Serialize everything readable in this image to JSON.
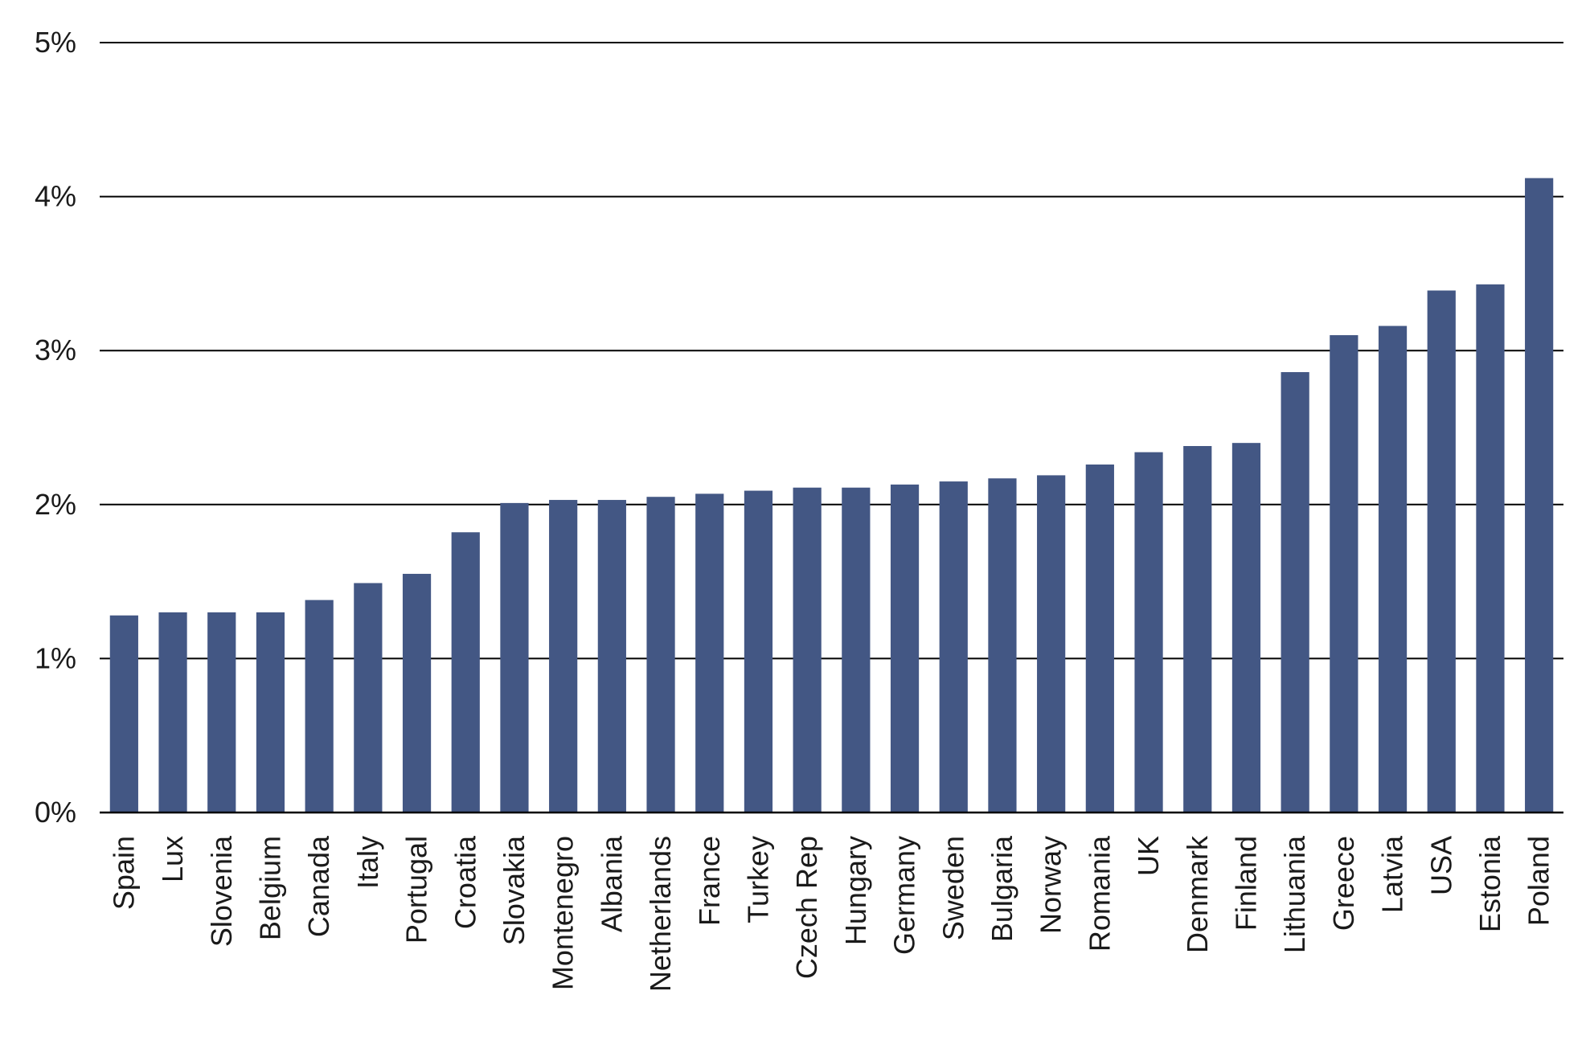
{
  "chart_data": {
    "type": "bar",
    "title": "",
    "xlabel": "",
    "ylabel": "",
    "ylim": [
      0,
      5
    ],
    "y_ticks": [
      0,
      1,
      2,
      3,
      4,
      5
    ],
    "y_tick_labels": [
      "0%",
      "1%",
      "2%",
      "3%",
      "4%",
      "5%"
    ],
    "grid": true,
    "legend": "none",
    "categories": [
      "Spain",
      "Lux",
      "Slovenia",
      "Belgium",
      "Canada",
      "Italy",
      "Portugal",
      "Croatia",
      "Slovakia",
      "Montenegro",
      "Albania",
      "Netherlands",
      "France",
      "Turkey",
      "Czech Rep",
      "Hungary",
      "Germany",
      "Sweden",
      "Bulgaria",
      "Norway",
      "Romania",
      "UK",
      "Denmark",
      "Finland",
      "Lithuania",
      "Greece",
      "Latvia",
      "USA",
      "Estonia",
      "Poland"
    ],
    "values": [
      1.28,
      1.3,
      1.3,
      1.3,
      1.38,
      1.49,
      1.55,
      1.82,
      2.01,
      2.03,
      2.03,
      2.05,
      2.07,
      2.09,
      2.11,
      2.11,
      2.13,
      2.15,
      2.17,
      2.19,
      2.26,
      2.34,
      2.38,
      2.4,
      2.86,
      3.1,
      3.16,
      3.39,
      3.43,
      4.12
    ],
    "colors": {
      "bar": "#435784",
      "grid": "#000000",
      "text": "#1a1a1a"
    }
  }
}
